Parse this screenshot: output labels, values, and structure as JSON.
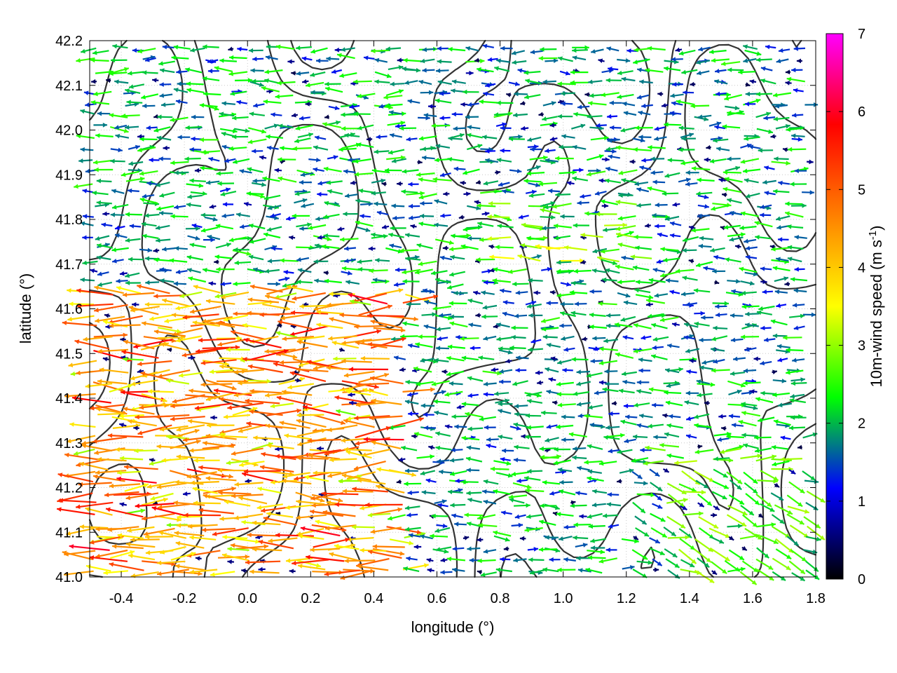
{
  "chart_data": {
    "type": "vector-field",
    "xlabel": "longitude (°)",
    "ylabel": "latitude (°)",
    "xlim": [
      -0.5,
      1.8
    ],
    "ylim": [
      41.0,
      42.2
    ],
    "x_ticks": [
      "-0.4",
      "-0.2",
      "0.0",
      "0.2",
      "0.4",
      "0.6",
      "0.8",
      "1.0",
      "1.2",
      "1.4",
      "1.6",
      "1.8"
    ],
    "y_ticks": [
      "41.0",
      "41.1",
      "41.2",
      "41.3",
      "41.4",
      "41.5",
      "41.6",
      "41.7",
      "41.8",
      "41.9",
      "42.0",
      "42.1",
      "42.2"
    ],
    "grid": true,
    "colorbar": {
      "label_main": "10m-wind speed (m s",
      "label_sup": "-1",
      "label_close": ")",
      "range": [
        0,
        7
      ],
      "ticks": [
        "0",
        "1",
        "2",
        "3",
        "4",
        "5",
        "6",
        "7"
      ],
      "colors": [
        "#000000",
        "#0000ff",
        "#00ff00",
        "#ffff00",
        "#ff8000",
        "#ff0000",
        "#ff00ff"
      ]
    },
    "contour_color": "#333333"
  }
}
